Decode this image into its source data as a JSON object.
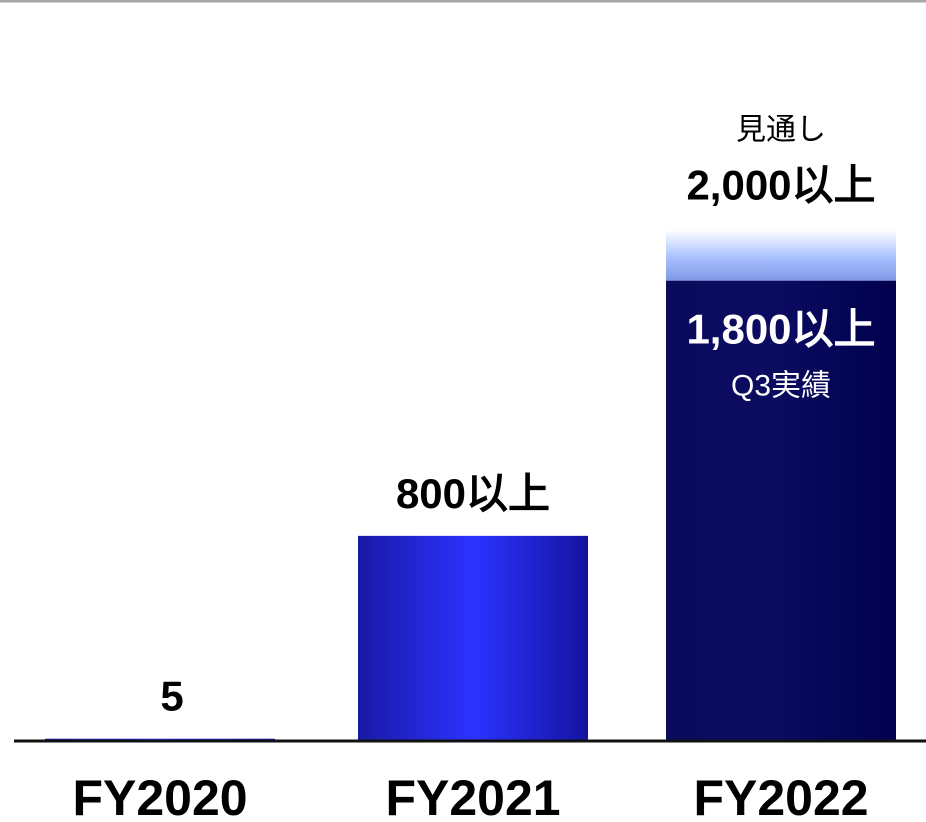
{
  "chart_data": {
    "type": "bar",
    "categories": [
      "FY2020",
      "FY2021",
      "FY2022"
    ],
    "values": [
      5,
      800,
      1800
    ],
    "value_labels": [
      "5",
      "800以上",
      "1,800以上"
    ],
    "forecast": {
      "category": "FY2022",
      "value": 2000,
      "label": "2,000以上",
      "caption": "見通し"
    },
    "inner_caption": "Q3実績",
    "ylim": [
      0,
      2900
    ],
    "grid": false,
    "colors": {
      "bar_edge": "#1717a6",
      "bar_center": "#2c33ff",
      "bar_dark": "#02025a",
      "forecast_fade": "#a8c0ff",
      "axis": "#111111",
      "top_rule": "#a6a6a6"
    }
  }
}
